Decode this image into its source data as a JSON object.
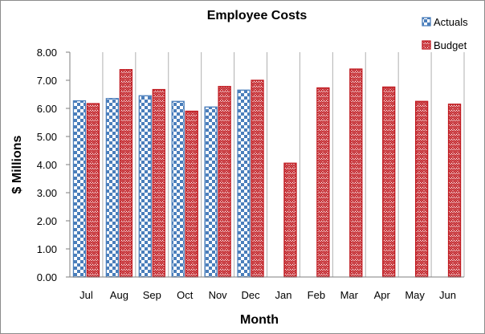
{
  "chart_data": {
    "type": "bar",
    "title": "Employee Costs",
    "xlabel": "Month",
    "ylabel": "$ Millions",
    "categories": [
      "Jul",
      "Aug",
      "Sep",
      "Oct",
      "Nov",
      "Dec",
      "Jan",
      "Feb",
      "Mar",
      "Apr",
      "May",
      "Jun"
    ],
    "ylim": [
      0,
      8
    ],
    "yticks": [
      "0.00",
      "1.00",
      "2.00",
      "3.00",
      "4.00",
      "5.00",
      "6.00",
      "7.00",
      "8.00"
    ],
    "grid": "vertical",
    "legend_position": "top-right",
    "series": [
      {
        "name": "Actuals",
        "color": "#4a7ebb",
        "pattern": "checkerboard",
        "values": [
          6.27,
          6.35,
          6.45,
          6.25,
          6.05,
          6.65,
          null,
          null,
          null,
          null,
          null,
          null
        ]
      },
      {
        "name": "Budget",
        "color": "#c0191f",
        "pattern": "zigzag",
        "values": [
          6.17,
          7.38,
          6.67,
          5.9,
          6.78,
          7.0,
          4.05,
          6.73,
          7.4,
          6.76,
          6.25,
          6.15
        ]
      }
    ]
  }
}
